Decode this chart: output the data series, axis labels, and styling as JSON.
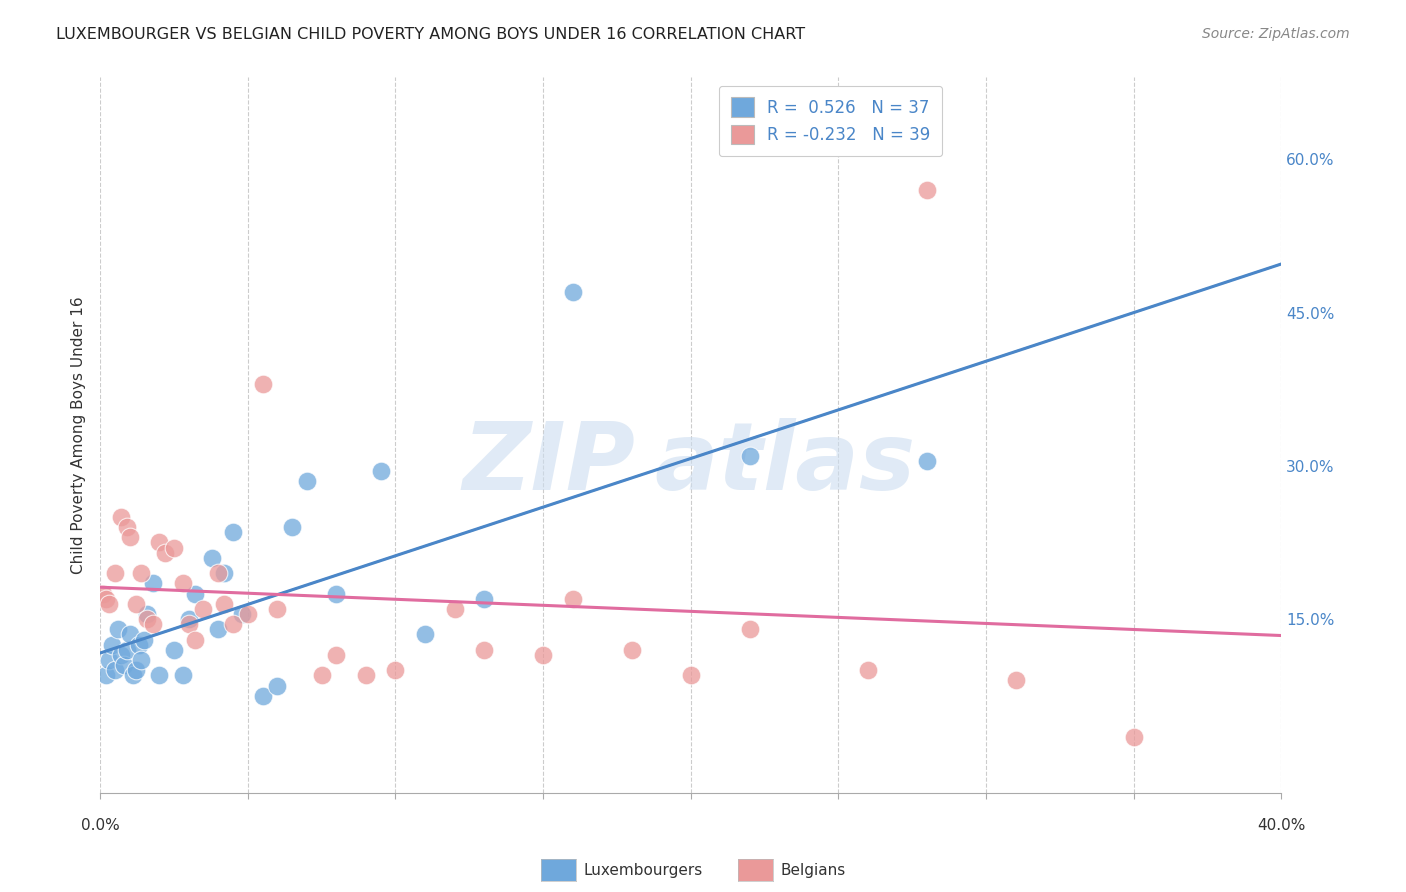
{
  "title": "LUXEMBOURGER VS BELGIAN CHILD POVERTY AMONG BOYS UNDER 16 CORRELATION CHART",
  "source": "Source: ZipAtlas.com",
  "ylabel": "Child Poverty Among Boys Under 16",
  "ytick_labels": [
    "60.0%",
    "45.0%",
    "30.0%",
    "15.0%"
  ],
  "ytick_values": [
    0.6,
    0.45,
    0.3,
    0.15
  ],
  "xlim": [
    0.0,
    0.4
  ],
  "ylim": [
    -0.02,
    0.68
  ],
  "legend_lux": "R =  0.526   N = 37",
  "legend_bel": "R = -0.232   N = 39",
  "lux_color": "#6fa8dc",
  "bel_color": "#ea9999",
  "lux_line_color": "#4a86c8",
  "bel_line_color": "#e06c9f",
  "background_color": "#ffffff",
  "grid_color": "#cccccc",
  "lux_points_x": [
    0.002,
    0.003,
    0.004,
    0.005,
    0.006,
    0.007,
    0.008,
    0.009,
    0.01,
    0.011,
    0.012,
    0.013,
    0.014,
    0.015,
    0.016,
    0.018,
    0.02,
    0.025,
    0.028,
    0.03,
    0.032,
    0.038,
    0.04,
    0.042,
    0.045,
    0.048,
    0.055,
    0.06,
    0.065,
    0.07,
    0.08,
    0.095,
    0.11,
    0.13,
    0.16,
    0.22,
    0.28
  ],
  "lux_points_y": [
    0.095,
    0.11,
    0.125,
    0.1,
    0.14,
    0.115,
    0.105,
    0.12,
    0.135,
    0.095,
    0.1,
    0.125,
    0.11,
    0.13,
    0.155,
    0.185,
    0.095,
    0.12,
    0.095,
    0.15,
    0.175,
    0.21,
    0.14,
    0.195,
    0.235,
    0.155,
    0.075,
    0.085,
    0.24,
    0.285,
    0.175,
    0.295,
    0.135,
    0.17,
    0.47,
    0.31,
    0.305
  ],
  "bel_points_x": [
    0.001,
    0.002,
    0.003,
    0.005,
    0.007,
    0.009,
    0.01,
    0.012,
    0.014,
    0.016,
    0.018,
    0.02,
    0.022,
    0.025,
    0.028,
    0.03,
    0.032,
    0.035,
    0.04,
    0.042,
    0.045,
    0.05,
    0.055,
    0.06,
    0.075,
    0.08,
    0.09,
    0.1,
    0.12,
    0.13,
    0.15,
    0.16,
    0.18,
    0.2,
    0.22,
    0.26,
    0.28,
    0.31,
    0.35
  ],
  "bel_points_y": [
    0.175,
    0.17,
    0.165,
    0.195,
    0.25,
    0.24,
    0.23,
    0.165,
    0.195,
    0.15,
    0.145,
    0.225,
    0.215,
    0.22,
    0.185,
    0.145,
    0.13,
    0.16,
    0.195,
    0.165,
    0.145,
    0.155,
    0.38,
    0.16,
    0.095,
    0.115,
    0.095,
    0.1,
    0.16,
    0.12,
    0.115,
    0.17,
    0.12,
    0.095,
    0.14,
    0.1,
    0.57,
    0.09,
    0.035
  ]
}
